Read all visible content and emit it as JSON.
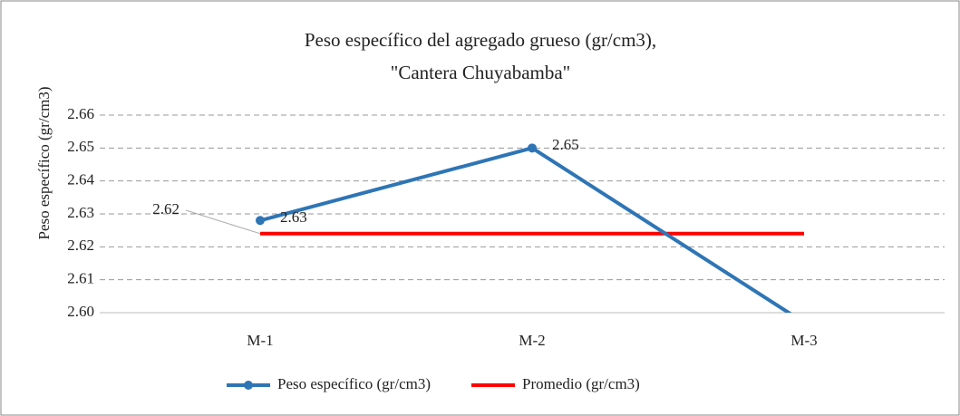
{
  "chart_data": {
    "type": "line",
    "title": [
      "Peso específico del agregado grueso (gr/cm3),",
      "\"Cantera Chuyabamba\""
    ],
    "y_label": "Peso específico (gr/cm3)",
    "categories": [
      "M-1",
      "M-2",
      "M-3"
    ],
    "series": [
      {
        "name": "Peso específico (gr/cm3)",
        "color": "#2e75b6",
        "marker": "circle",
        "values": [
          2.628,
          2.65,
          2.597
        ],
        "value_labels": [
          "2.63",
          "2.65",
          null
        ]
      },
      {
        "name": "Promedio (gr/cm3)",
        "color": "#ff0000",
        "values": [
          2.624,
          2.624,
          2.624
        ],
        "value_labels": [
          "2.62",
          null,
          null
        ]
      }
    ],
    "ylim": [
      2.6,
      2.66
    ],
    "yticks": [
      {
        "value": 2.6,
        "label": "2.60"
      },
      2.61,
      2.62,
      2.63,
      2.64,
      2.65,
      2.66
    ],
    "grid": true,
    "legend": "bottom"
  }
}
